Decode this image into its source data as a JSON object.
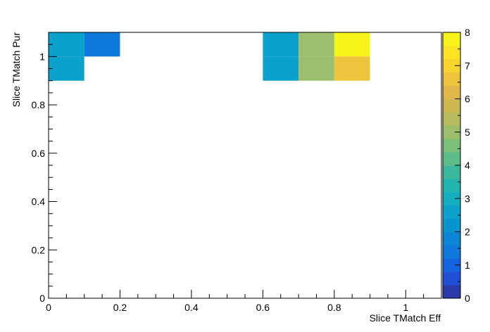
{
  "chart_data": {
    "type": "heatmap",
    "title": "",
    "xlabel": "Slice TMatch Eff",
    "ylabel": "Slice TMatch Pur",
    "xlim": [
      0,
      1.1
    ],
    "ylim": [
      0,
      1.1
    ],
    "zlim": [
      0,
      8
    ],
    "x_ticks": [
      "0",
      "0.2",
      "0.4",
      "0.6",
      "0.8",
      "1"
    ],
    "y_ticks": [
      "0",
      "0.2",
      "0.4",
      "0.6",
      "0.8",
      "1"
    ],
    "z_ticks": [
      "0",
      "1",
      "2",
      "3",
      "4",
      "5",
      "6",
      "7",
      "8"
    ],
    "bin_width_x": 0.1,
    "bin_width_y": 0.1,
    "bins": [
      {
        "x": 0.0,
        "y": 1.0,
        "value": 2.5
      },
      {
        "x": 0.1,
        "y": 1.0,
        "value": 1.3
      },
      {
        "x": 0.6,
        "y": 1.0,
        "value": 2.5
      },
      {
        "x": 0.7,
        "y": 1.0,
        "value": 5.0
      },
      {
        "x": 0.8,
        "y": 1.0,
        "value": 8.0
      },
      {
        "x": 0.0,
        "y": 0.9,
        "value": 2.5
      },
      {
        "x": 0.6,
        "y": 0.9,
        "value": 2.5
      },
      {
        "x": 0.7,
        "y": 0.9,
        "value": 5.0
      },
      {
        "x": 0.8,
        "y": 0.9,
        "value": 6.5
      }
    ],
    "palette": [
      "#2a3aa8",
      "#1e4fd6",
      "#1464e0",
      "#0e78dc",
      "#0a86d4",
      "#0894cf",
      "#0aa2cc",
      "#13aec2",
      "#22b5b0",
      "#3cb99c",
      "#5cbd88",
      "#7bbf78",
      "#9bbf6c",
      "#b7bd5e",
      "#cdb850",
      "#e0b84a",
      "#eec43c",
      "#f8d42e",
      "#fce424",
      "#f7f419"
    ],
    "grid": false,
    "legend": "colorbar-right"
  }
}
